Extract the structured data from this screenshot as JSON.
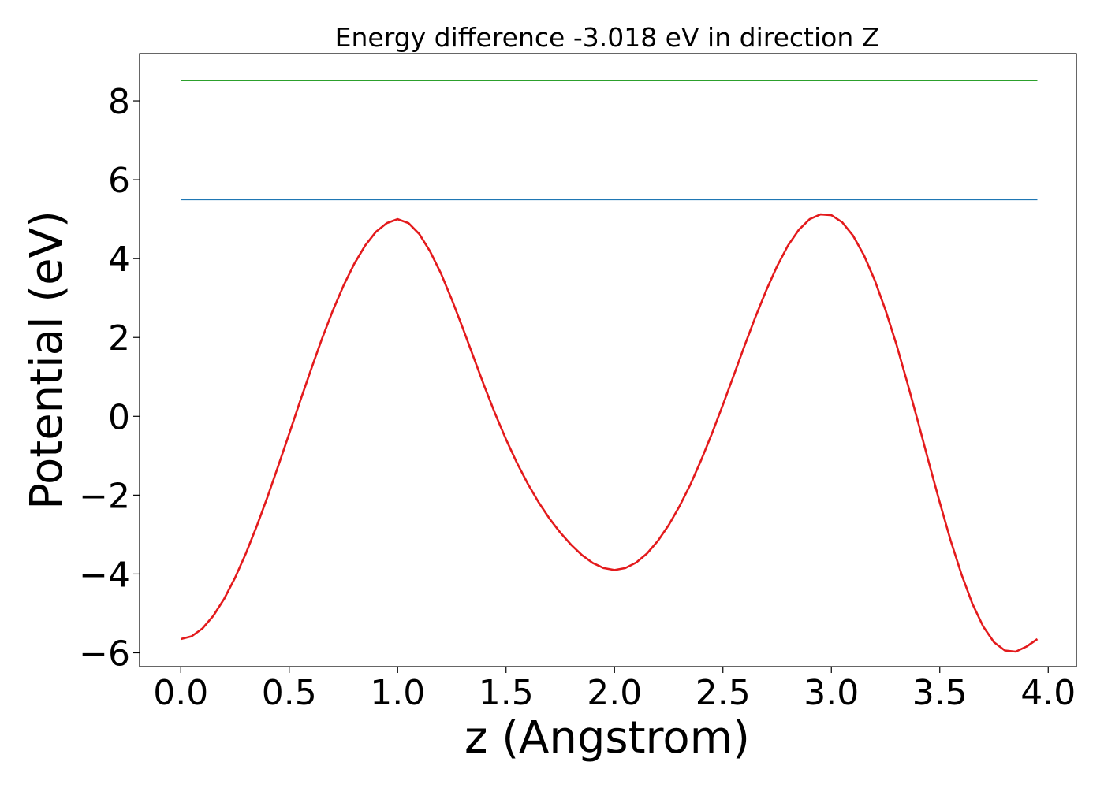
{
  "chart_data": {
    "type": "line",
    "title": "Energy difference -3.018 eV in direction Z",
    "xlabel": "z (Angstrom)",
    "ylabel": "Potential (eV)",
    "xlim": [
      -0.19,
      4.13
    ],
    "ylim": [
      -6.35,
      9.2
    ],
    "xticks": [
      0.0,
      0.5,
      1.0,
      1.5,
      2.0,
      2.5,
      3.0,
      3.5,
      4.0
    ],
    "xtick_labels": [
      "0.0",
      "0.5",
      "1.0",
      "1.5",
      "2.0",
      "2.5",
      "3.0",
      "3.5",
      "4.0"
    ],
    "yticks": [
      -6,
      -4,
      -2,
      0,
      2,
      4,
      6,
      8
    ],
    "ytick_labels": [
      "−6",
      "−4",
      "−2",
      "0",
      "2",
      "4",
      "6",
      "8"
    ],
    "grid": false,
    "series": [
      {
        "color": "#2ca02c",
        "style": "horizontal",
        "x": [
          0.0,
          3.95
        ],
        "y": [
          8.52,
          8.52
        ]
      },
      {
        "color": "#1f77b4",
        "style": "horizontal",
        "x": [
          0.0,
          3.95
        ],
        "y": [
          5.5,
          5.5
        ]
      },
      {
        "color": "#e31a1c",
        "x": [
          0.0,
          0.05,
          0.1,
          0.15,
          0.2,
          0.25,
          0.3,
          0.35,
          0.4,
          0.45,
          0.5,
          0.55,
          0.6,
          0.65,
          0.7,
          0.75,
          0.8,
          0.85,
          0.9,
          0.95,
          1.0,
          1.05,
          1.1,
          1.15,
          1.2,
          1.25,
          1.3,
          1.35,
          1.4,
          1.45,
          1.5,
          1.55,
          1.6,
          1.65,
          1.7,
          1.75,
          1.8,
          1.85,
          1.9,
          1.95,
          2.0,
          2.05,
          2.1,
          2.15,
          2.2,
          2.25,
          2.3,
          2.35,
          2.4,
          2.45,
          2.5,
          2.55,
          2.6,
          2.65,
          2.7,
          2.75,
          2.8,
          2.85,
          2.9,
          2.95,
          3.0,
          3.05,
          3.1,
          3.15,
          3.2,
          3.25,
          3.3,
          3.35,
          3.4,
          3.45,
          3.5,
          3.55,
          3.6,
          3.65,
          3.7,
          3.75,
          3.8,
          3.85,
          3.9,
          3.95
        ],
        "y": [
          -5.65,
          -5.58,
          -5.38,
          -5.06,
          -4.63,
          -4.1,
          -3.48,
          -2.79,
          -2.04,
          -1.25,
          -0.44,
          0.38,
          1.18,
          1.95,
          2.67,
          3.31,
          3.87,
          4.33,
          4.68,
          4.9,
          5.0,
          4.9,
          4.62,
          4.18,
          3.62,
          2.96,
          2.24,
          1.5,
          0.76,
          0.06,
          -0.59,
          -1.18,
          -1.71,
          -2.18,
          -2.59,
          -2.95,
          -3.26,
          -3.52,
          -3.72,
          -3.85,
          -3.9,
          -3.85,
          -3.71,
          -3.48,
          -3.16,
          -2.76,
          -2.28,
          -1.73,
          -1.11,
          -0.43,
          0.29,
          1.04,
          1.79,
          2.52,
          3.2,
          3.81,
          4.33,
          4.73,
          5.0,
          5.12,
          5.1,
          4.92,
          4.58,
          4.09,
          3.45,
          2.69,
          1.82,
          0.86,
          -0.15,
          -1.18,
          -2.19,
          -3.15,
          -4.01,
          -4.75,
          -5.33,
          -5.73,
          -5.94,
          -5.97,
          -5.84,
          -5.65
        ]
      }
    ]
  }
}
